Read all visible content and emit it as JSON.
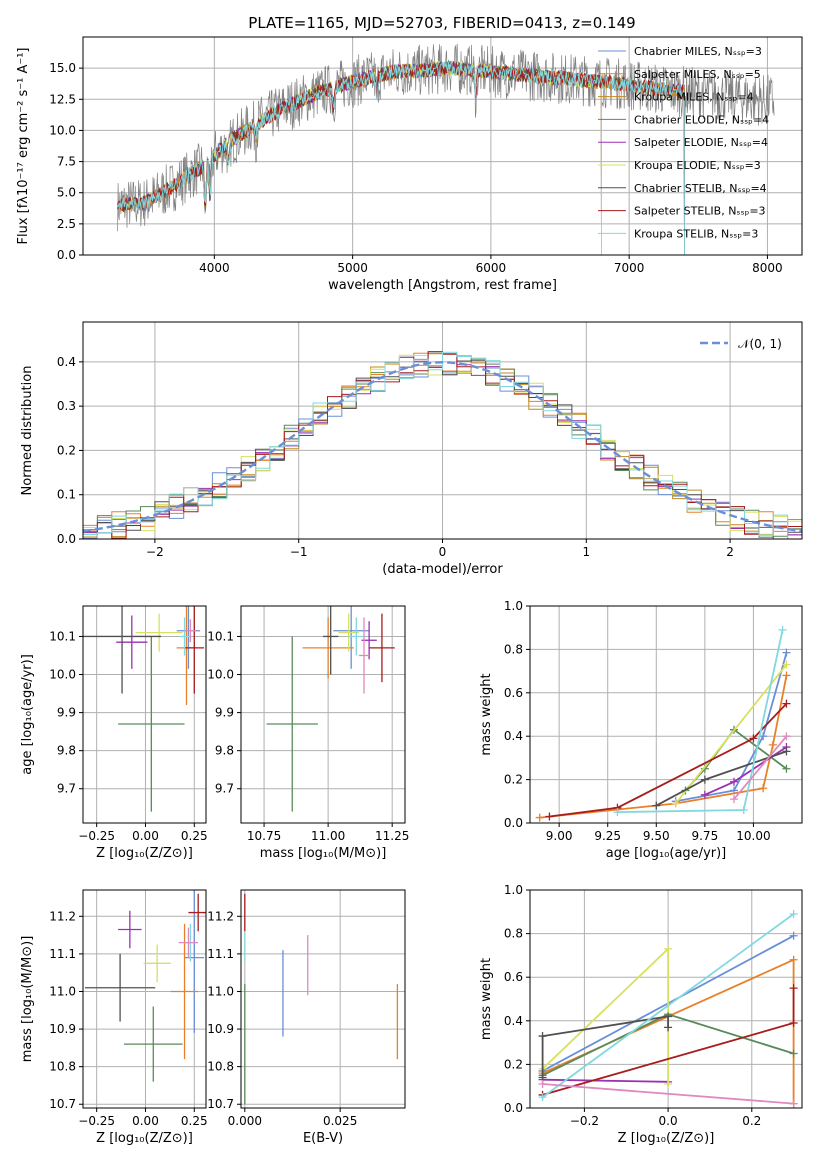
{
  "figure_title": "PLATE=1165, MJD=52703, FIBERID=0413, z=0.149",
  "colors": {
    "Chabrier MILES": "#6a8fd8",
    "Salpeter MILES": "#e8802a",
    "Kroupa MILES": "#c28a1e",
    "Chabrier ELODIE": "#5a8a5a",
    "Salpeter ELODIE": "#9b30b0",
    "Kroupa ELODIE": "#d8e060",
    "Chabrier STELIB": "#505050",
    "Salpeter STELIB": "#a81c1c",
    "Kroupa STELIB": "#80d8e0",
    "data": "#808080",
    "pink": "#e088c0",
    "gaussian": "#6a8fd8"
  },
  "chart_data": [
    {
      "id": "spectrum",
      "type": "line",
      "title": "PLATE=1165, MJD=52703, FIBERID=0413, z=0.149",
      "xlabel": "wavelength [Angstrom, rest frame]",
      "ylabel": "Flux [fλ10⁻¹⁷ erg cm⁻² s⁻¹ A⁻¹]",
      "xlim": [
        3050,
        8250
      ],
      "ylim": [
        0,
        17.5
      ],
      "xticks": [
        "4000",
        "5000",
        "6000",
        "7000",
        "8000"
      ],
      "yticks": [
        "0.0",
        "2.5",
        "5.0",
        "7.5",
        "10.0",
        "12.5",
        "15.0"
      ],
      "legend_position": "top-right",
      "series": [
        {
          "name": "Chabrier MILES, Nₛₛₚ=3",
          "color_key": "Chabrier MILES",
          "range": [
            3300,
            7400
          ]
        },
        {
          "name": "Salpeter MILES, Nₛₛₚ=5",
          "color_key": "Salpeter MILES",
          "range": [
            3300,
            7400
          ]
        },
        {
          "name": "Kroupa MILES, Nₛₛₚ=4",
          "color_key": "Kroupa MILES",
          "range": [
            3300,
            7400
          ]
        },
        {
          "name": "Chabrier ELODIE, Nₛₛₚ=4",
          "color_key": "Chabrier ELODIE",
          "range": [
            3900,
            6800
          ]
        },
        {
          "name": "Salpeter ELODIE, Nₛₛₚ=4",
          "color_key": "Salpeter ELODIE",
          "range": [
            3900,
            6800
          ]
        },
        {
          "name": "Kroupa ELODIE, Nₛₛₚ=3",
          "color_key": "Kroupa ELODIE",
          "range": [
            3900,
            6800
          ]
        },
        {
          "name": "Chabrier STELIB, Nₛₛₚ=4",
          "color_key": "Chabrier STELIB",
          "range": [
            3300,
            7400
          ]
        },
        {
          "name": "Salpeter STELIB, Nₛₛₚ=3",
          "color_key": "Salpeter STELIB",
          "range": [
            3300,
            7400
          ]
        },
        {
          "name": "Kroupa STELIB, Nₛₛₚ=3",
          "color_key": "Kroupa STELIB",
          "range": [
            3300,
            7400
          ]
        }
      ],
      "continuum": [
        [
          3300,
          4.0
        ],
        [
          3500,
          4.2
        ],
        [
          3700,
          5.5
        ],
        [
          3900,
          7.0
        ],
        [
          4100,
          9.0
        ],
        [
          4300,
          10.5
        ],
        [
          4500,
          11.8
        ],
        [
          4700,
          12.8
        ],
        [
          4900,
          13.6
        ],
        [
          5100,
          14.2
        ],
        [
          5300,
          14.7
        ],
        [
          5500,
          14.8
        ],
        [
          5700,
          15.0
        ],
        [
          5900,
          14.8
        ],
        [
          6100,
          14.6
        ],
        [
          6300,
          14.4
        ],
        [
          6500,
          14.2
        ],
        [
          6700,
          14.0
        ],
        [
          6900,
          13.8
        ],
        [
          7100,
          13.5
        ],
        [
          7300,
          13.2
        ],
        [
          7500,
          13.0
        ],
        [
          7700,
          12.8
        ],
        [
          7900,
          12.5
        ],
        [
          8050,
          12.4
        ]
      ],
      "data_range": [
        3300,
        8050
      ]
    },
    {
      "id": "residuals",
      "type": "line",
      "xlabel": "(data-model)/error",
      "ylabel": "Normed distribution",
      "xlim": [
        -2.5,
        2.5
      ],
      "ylim": [
        0,
        0.49
      ],
      "xticks": [
        "−2",
        "−1",
        "0",
        "1",
        "2"
      ],
      "yticks": [
        "0.0",
        "0.1",
        "0.2",
        "0.3",
        "0.4"
      ],
      "legend": [
        "𝒩(0, 1)"
      ],
      "legend_position": "top-right"
    },
    {
      "id": "age_vs_Z",
      "type": "scatter",
      "xlabel": "Z [log₁₀(Z/Z⊙)]",
      "ylabel": "age  [log₁₀(age/yr)]",
      "xlim": [
        -0.32,
        0.31
      ],
      "ylim": [
        9.61,
        10.18
      ],
      "xticks": [
        "−0.25",
        "0.00",
        "0.25"
      ],
      "yticks": [
        "9.7",
        "9.8",
        "9.9",
        "10.0",
        "10.1"
      ],
      "points": [
        {
          "color_key": "Chabrier MILES",
          "x": 0.22,
          "y": 10.115,
          "xerr": 0.06,
          "yerr": 0.1
        },
        {
          "color_key": "Salpeter MILES",
          "x": 0.21,
          "y": 10.07,
          "xerr": 0.05,
          "yerr": 0.15
        },
        {
          "color_key": "Chabrier ELODIE",
          "x": 0.03,
          "y": 9.87,
          "xerr": 0.17,
          "yerr": 0.23
        },
        {
          "color_key": "Salpeter ELODIE",
          "x": -0.07,
          "y": 10.085,
          "xerr": 0.08,
          "yerr": 0.07
        },
        {
          "color_key": "Kroupa ELODIE",
          "x": 0.07,
          "y": 10.11,
          "xerr": 0.12,
          "yerr": 0.05
        },
        {
          "color_key": "Chabrier STELIB",
          "x": -0.12,
          "y": 10.1,
          "xerr": 0.2,
          "yerr": 0.15
        },
        {
          "color_key": "Salpeter STELIB",
          "x": 0.25,
          "y": 10.07,
          "xerr": 0.05,
          "yerr": 0.12
        },
        {
          "color_key": "Kroupa STELIB",
          "x": 0.2,
          "y": 10.1,
          "xerr": 0.03,
          "yerr": 0.05
        },
        {
          "color_key": "pink",
          "x": 0.23,
          "y": 10.115,
          "xerr": 0.03,
          "yerr": 0.03
        }
      ]
    },
    {
      "id": "age_vs_mass",
      "type": "scatter",
      "xlabel": "mass [log₁₀(M/M⊙)]",
      "ylabel": "",
      "xlim": [
        10.66,
        11.3
      ],
      "ylim": [
        9.61,
        10.18
      ],
      "xticks": [
        "10.75",
        "11.00",
        "11.25"
      ],
      "yticks": [
        "9.7",
        "9.8",
        "9.9",
        "10.0",
        "10.1"
      ],
      "points": [
        {
          "color_key": "Chabrier MILES",
          "x": 11.09,
          "y": 10.115,
          "xerr": 0.07,
          "yerr": 0.1
        },
        {
          "color_key": "Salpeter MILES",
          "x": 11.0,
          "y": 10.07,
          "xerr": 0.1,
          "yerr": 0.08
        },
        {
          "color_key": "Chabrier ELODIE",
          "x": 10.86,
          "y": 9.87,
          "xerr": 0.1,
          "yerr": 0.23
        },
        {
          "color_key": "Salpeter ELODIE",
          "x": 11.16,
          "y": 10.09,
          "xerr": 0.03,
          "yerr": 0.05
        },
        {
          "color_key": "Kroupa ELODIE",
          "x": 11.08,
          "y": 10.11,
          "xerr": 0.04,
          "yerr": 0.05
        },
        {
          "color_key": "Chabrier STELIB",
          "x": 11.01,
          "y": 10.1,
          "xerr": 0.03,
          "yerr": 0.1
        },
        {
          "color_key": "Salpeter STELIB",
          "x": 11.21,
          "y": 10.07,
          "xerr": 0.05,
          "yerr": 0.09
        },
        {
          "color_key": "Kroupa STELIB",
          "x": 11.11,
          "y": 10.1,
          "xerr": 0.03,
          "yerr": 0.05
        },
        {
          "color_key": "pink",
          "x": 11.14,
          "y": 10.05,
          "xerr": 0.02,
          "yerr": 0.1
        }
      ]
    },
    {
      "id": "mass_weight_vs_age",
      "type": "line",
      "xlabel": "age  [log₁₀(age/yr)]",
      "ylabel": "mass weight",
      "xlim": [
        8.85,
        10.25
      ],
      "ylim": [
        0,
        1
      ],
      "xticks": [
        "9.00",
        "9.25",
        "9.50",
        "9.75",
        "10.00"
      ],
      "yticks": [
        "0.0",
        "0.2",
        "0.4",
        "0.6",
        "0.8",
        "1.0"
      ],
      "series": [
        {
          "color_key": "Chabrier MILES",
          "x": [
            9.6,
            9.9,
            10.05,
            10.17
          ],
          "y": [
            0.1,
            0.15,
            0.4,
            0.785
          ]
        },
        {
          "color_key": "Salpeter MILES",
          "x": [
            8.9,
            9.6,
            10.05,
            10.1,
            10.17
          ],
          "y": [
            0.025,
            0.09,
            0.16,
            0.36,
            0.68
          ]
        },
        {
          "color_key": "Chabrier ELODIE",
          "x": [
            9.65,
            9.75,
            9.9,
            10.17
          ],
          "y": [
            0.15,
            0.25,
            0.43,
            0.25
          ]
        },
        {
          "color_key": "Salpeter ELODIE",
          "x": [
            9.75,
            9.9,
            10.17
          ],
          "y": [
            0.13,
            0.19,
            0.35
          ]
        },
        {
          "color_key": "Kroupa ELODIE",
          "x": [
            9.6,
            10.17
          ],
          "y": [
            0.09,
            0.73
          ]
        },
        {
          "color_key": "Chabrier STELIB",
          "x": [
            9.5,
            9.75,
            10.17
          ],
          "y": [
            0.08,
            0.2,
            0.33
          ]
        },
        {
          "color_key": "Salpeter STELIB",
          "x": [
            8.95,
            9.3,
            10.0,
            10.17
          ],
          "y": [
            0.03,
            0.07,
            0.39,
            0.55
          ]
        },
        {
          "color_key": "Kroupa STELIB",
          "x": [
            9.3,
            9.95,
            10.15
          ],
          "y": [
            0.05,
            0.06,
            0.89
          ]
        },
        {
          "color_key": "pink",
          "x": [
            9.9,
            10.17
          ],
          "y": [
            0.11,
            0.4
          ]
        }
      ]
    },
    {
      "id": "mass_vs_Z",
      "type": "scatter",
      "xlabel": "Z [log₁₀(Z/Z⊙)]",
      "ylabel": "mass [log₁₀(M/M⊙)]",
      "xlim": [
        -0.32,
        0.31
      ],
      "ylim": [
        10.69,
        11.27
      ],
      "xticks": [
        "−0.25",
        "0.00",
        "0.25"
      ],
      "yticks": [
        "10.7",
        "10.8",
        "10.9",
        "11.0",
        "11.1",
        "11.2"
      ],
      "points": [
        {
          "color_key": "Chabrier MILES",
          "x": 0.25,
          "y": 11.09,
          "xerr": 0.05,
          "yerr": 0.2
        },
        {
          "color_key": "Salpeter MILES",
          "x": 0.2,
          "y": 11.0,
          "xerr": 0.07,
          "yerr": 0.18
        },
        {
          "color_key": "Chabrier ELODIE",
          "x": 0.04,
          "y": 10.86,
          "xerr": 0.15,
          "yerr": 0.1
        },
        {
          "color_key": "Salpeter ELODIE",
          "x": -0.08,
          "y": 11.165,
          "xerr": 0.06,
          "yerr": 0.05
        },
        {
          "color_key": "Kroupa ELODIE",
          "x": 0.06,
          "y": 11.075,
          "xerr": 0.07,
          "yerr": 0.05
        },
        {
          "color_key": "Chabrier STELIB",
          "x": -0.13,
          "y": 11.01,
          "xerr": 0.18,
          "yerr": 0.09
        },
        {
          "color_key": "Salpeter STELIB",
          "x": 0.27,
          "y": 11.21,
          "xerr": 0.05,
          "yerr": 0.05
        },
        {
          "color_key": "Kroupa STELIB",
          "x": 0.23,
          "y": 11.13,
          "xerr": 0.03,
          "yerr": 0.05
        },
        {
          "color_key": "pink",
          "x": 0.22,
          "y": 11.13,
          "xerr": 0.05,
          "yerr": 0.04
        }
      ]
    },
    {
      "id": "mass_vs_EBV",
      "type": "scatter",
      "xlabel": "E(B-V)",
      "ylabel": "",
      "xlim": [
        -0.001,
        0.042
      ],
      "ylim": [
        10.69,
        11.27
      ],
      "xticks": [
        "0.000",
        "0.025"
      ],
      "yticks": [
        "10.7",
        "10.8",
        "10.9",
        "11.0",
        "11.1",
        "11.2"
      ],
      "points": [
        {
          "color_key": "Chabrier MILES",
          "x": 0.01,
          "y": 10.995,
          "yerr": 0.115
        },
        {
          "color_key": "Salpeter MILES",
          "x": 0.04,
          "y": 10.92,
          "yerr": 0.1
        },
        {
          "color_key": "pink",
          "x": 0.0165,
          "y": 11.07,
          "yerr": 0.08
        },
        {
          "color_key": "Chabrier ELODIE",
          "x": 0.0,
          "y": 10.86,
          "yerr": 0.16
        },
        {
          "color_key": "Salpeter STELIB",
          "x": 0.0,
          "y": 11.21,
          "yerr": 0.05
        },
        {
          "color_key": "Kroupa STELIB",
          "x": 0.0,
          "y": 11.12,
          "yerr": 0.04
        }
      ]
    },
    {
      "id": "mass_weight_vs_Z",
      "type": "line",
      "xlabel": "Z [log₁₀(Z/Z⊙)]",
      "ylabel": "mass weight",
      "xlim": [
        -0.33,
        0.32
      ],
      "ylim": [
        0,
        1
      ],
      "xticks": [
        "−0.2",
        "0.0",
        "0.2"
      ],
      "yticks": [
        "0.0",
        "0.2",
        "0.4",
        "0.6",
        "0.8",
        "1.0"
      ],
      "series": [
        {
          "color_key": "Chabrier MILES",
          "x": [
            -0.3,
            0.3
          ],
          "y": [
            0.17,
            0.79
          ]
        },
        {
          "color_key": "Salpeter MILES",
          "x": [
            -0.3,
            0.3,
            0.3
          ],
          "y": [
            0.16,
            0.68,
            0.02
          ]
        },
        {
          "color_key": "Chabrier ELODIE",
          "x": [
            -0.3,
            0.0,
            0.3
          ],
          "y": [
            0.15,
            0.43,
            0.25
          ]
        },
        {
          "color_key": "Salpeter ELODIE",
          "x": [
            -0.3,
            0.0
          ],
          "y": [
            0.13,
            0.12
          ]
        },
        {
          "color_key": "Kroupa ELODIE",
          "x": [
            -0.3,
            0.0,
            0.0
          ],
          "y": [
            0.18,
            0.73,
            0.11
          ]
        },
        {
          "color_key": "Chabrier STELIB",
          "x": [
            -0.3,
            -0.3,
            0.0,
            0.0
          ],
          "y": [
            0.14,
            0.33,
            0.42,
            0.37
          ]
        },
        {
          "color_key": "Salpeter STELIB",
          "x": [
            -0.3,
            0.3,
            0.3
          ],
          "y": [
            0.06,
            0.39,
            0.55
          ]
        },
        {
          "color_key": "Kroupa STELIB",
          "x": [
            -0.3,
            0.3
          ],
          "y": [
            0.05,
            0.89
          ]
        },
        {
          "color_key": "pink",
          "x": [
            -0.3,
            0.3
          ],
          "y": [
            0.11,
            0.02
          ]
        }
      ]
    }
  ]
}
